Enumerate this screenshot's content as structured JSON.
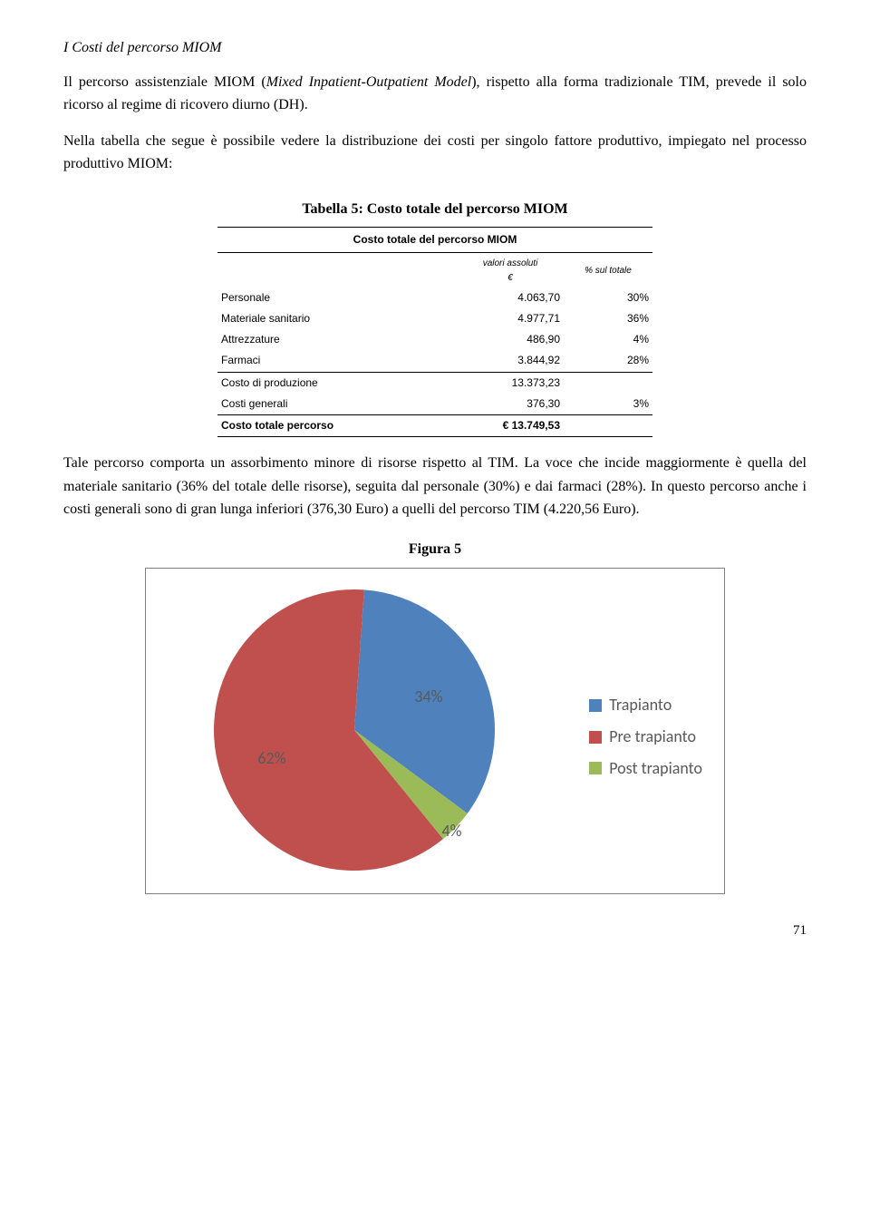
{
  "heading": "I Costi del percorso MIOM",
  "para1_a": "Il percorso assistenziale MIOM (",
  "para1_i": "Mixed Inpatient-Outpatient Model",
  "para1_b": "), rispetto alla forma tradizionale TIM, prevede il solo ricorso al regime di ricovero diurno (DH).",
  "para2": "Nella tabella che segue è possibile vedere la distribuzione dei costi per singolo fattore produttivo, impiegato nel processo produttivo MIOM:",
  "table": {
    "title": "Tabella 5: Costo totale del percorso MIOM",
    "subtitle": "Costo totale del percorso MIOM",
    "header_values": "valori assoluti",
    "header_currency": "€",
    "header_pct": "% sul totale",
    "rows": [
      {
        "label": "Personale",
        "value": "4.063,70",
        "pct": "30%"
      },
      {
        "label": "Materiale sanitario",
        "value": "4.977,71",
        "pct": "36%"
      },
      {
        "label": "Attrezzature",
        "value": "486,90",
        "pct": "4%"
      },
      {
        "label": "Farmaci",
        "value": "3.844,92",
        "pct": "28%"
      }
    ],
    "production_label": "Costo di produzione",
    "production_value": "13.373,23",
    "general_label": "Costi generali",
    "general_value": "376,30",
    "general_pct": "3%",
    "total_label": "Costo totale percorso",
    "total_value": "€ 13.749,53"
  },
  "para3": "Tale percorso comporta un assorbimento minore di risorse rispetto al TIM. La voce che incide maggiormente è quella del materiale sanitario (36% del totale delle risorse), seguita dal personale (30%) e dai farmaci (28%). In questo percorso anche i costi generali sono di gran lunga inferiori (376,30 Euro) a quelli del percorso TIM (4.220,56 Euro).",
  "figure": {
    "title": "Figura 5",
    "type": "pie",
    "slices": [
      {
        "name": "Trapianto",
        "pct": 34,
        "label": "34%",
        "color": "#4f81bd"
      },
      {
        "name": "Pre trapianto",
        "pct": 62,
        "label": "62%",
        "color": "#c0504d"
      },
      {
        "name": "Post trapianto",
        "pct": 4,
        "label": "4%",
        "color": "#9bbb59"
      }
    ],
    "background_color": "#ffffff",
    "border_color": "#7f7f7f",
    "label_color": "#595959",
    "label_fontsize": 18
  },
  "page_number": "71"
}
